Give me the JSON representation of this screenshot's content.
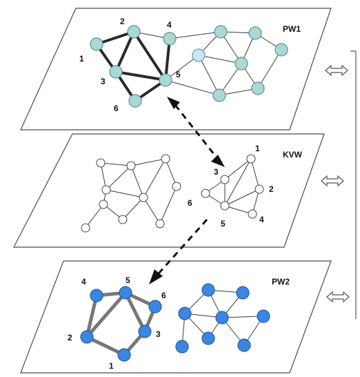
{
  "planes": [
    {
      "id": "pw1",
      "label": "PW1"
    },
    {
      "id": "kvw",
      "label": "KVW"
    },
    {
      "id": "pw2",
      "label": "PW2"
    }
  ],
  "pw1_node_labels": [
    "1",
    "2",
    "3",
    "4",
    "5",
    "6"
  ],
  "kvw_node_labels": [
    "1",
    "2",
    "3",
    "4",
    "5",
    "6"
  ],
  "pw2_node_labels": [
    "1",
    "2",
    "3",
    "4",
    "5",
    "6"
  ],
  "colors": {
    "pw1_node": "#a9d8d6",
    "kvw_node": "#ffffff",
    "pw2_node": "#3a86e0",
    "lines": "#333333"
  },
  "icons": [
    "double-arrow-icon",
    "double-arrow-icon",
    "double-arrow-icon"
  ]
}
